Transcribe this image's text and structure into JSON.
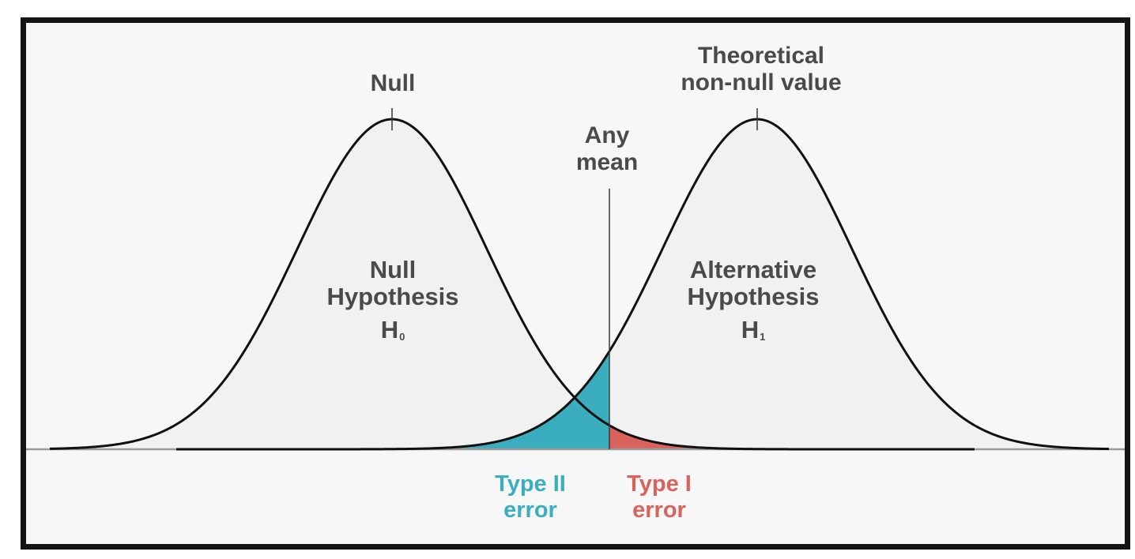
{
  "labels": {
    "null_peak": "Null",
    "alt_peak_line1": "Theoretical",
    "alt_peak_line2": "non-null value",
    "any_mean_line1": "Any",
    "any_mean_line2": "mean",
    "null_hyp_line1": "Null",
    "null_hyp_line2": "Hypothesis",
    "null_sym": "H",
    "null_sub": "0",
    "alt_hyp_line1": "Alternative",
    "alt_hyp_line2": "Hypothesis",
    "alt_sym": "H",
    "alt_sub": "1",
    "type2_line1": "Type II",
    "type2_line2": "error",
    "type1_line1": "Type I",
    "type1_line2": "error"
  },
  "colors": {
    "type2": "#3aaebe",
    "type1": "#d9625d",
    "curve": "#111111",
    "curve_fill": "#f1f1f1",
    "baseline": "#9a9a9a",
    "text": "#4a4a4a"
  }
}
